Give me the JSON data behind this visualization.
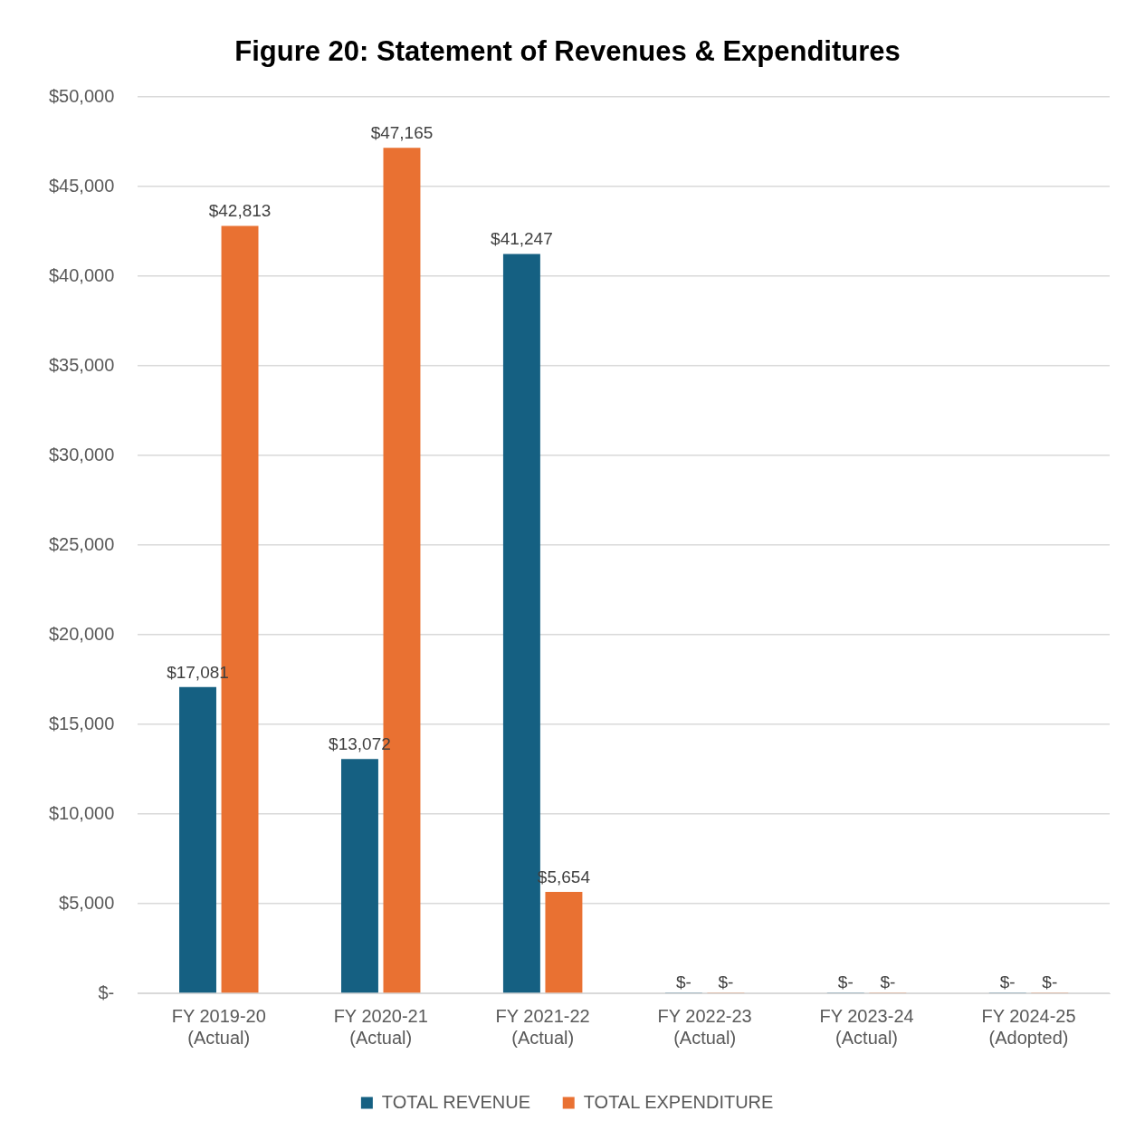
{
  "chart_data": {
    "type": "bar",
    "title": "Figure 20: Statement of Revenues & Expenditures",
    "categories": [
      "FY 2019-20\n(Actual)",
      "FY 2020-21\n(Actual)",
      "FY 2021-22\n(Actual)",
      "FY 2022-23\n(Actual)",
      "FY 2023-24\n(Actual)",
      "FY 2024-25\n(Adopted)"
    ],
    "series": [
      {
        "name": "TOTAL REVENUE",
        "color": "#156082",
        "values": [
          17081,
          13072,
          41247,
          0,
          0,
          0
        ],
        "value_labels": [
          "$17,081",
          "$13,072",
          "$41,247",
          "$-",
          "$-",
          "$-"
        ]
      },
      {
        "name": "TOTAL EXPENDITURE",
        "color": "#e97132",
        "values": [
          42813,
          47165,
          5654,
          0,
          0,
          0
        ],
        "value_labels": [
          "$42,813",
          "$47,165",
          "$5,654",
          "$-",
          "$-",
          "$-"
        ]
      }
    ],
    "ylim": [
      0,
      50000
    ],
    "yticks": [
      {
        "value": 0,
        "label": "$-"
      },
      {
        "value": 5000,
        "label": "$5,000"
      },
      {
        "value": 10000,
        "label": "$10,000"
      },
      {
        "value": 15000,
        "label": "$15,000"
      },
      {
        "value": 20000,
        "label": "$20,000"
      },
      {
        "value": 25000,
        "label": "$25,000"
      },
      {
        "value": 30000,
        "label": "$30,000"
      },
      {
        "value": 35000,
        "label": "$35,000"
      },
      {
        "value": 40000,
        "label": "$40,000"
      },
      {
        "value": 45000,
        "label": "$45,000"
      },
      {
        "value": 50000,
        "label": "$50,000"
      }
    ],
    "grid": "y",
    "legend": "bottom"
  }
}
